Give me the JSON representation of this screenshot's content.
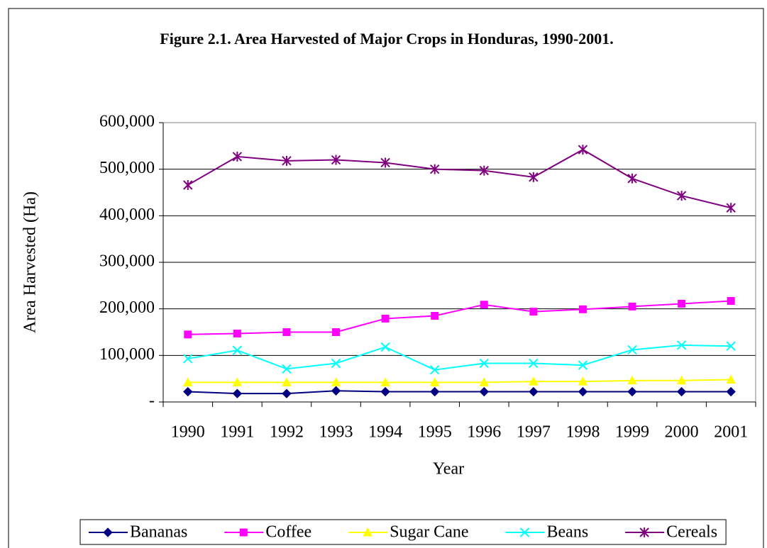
{
  "chart_data": {
    "type": "line",
    "title": "Figure 2.1. Area Harvested of Major Crops in Honduras, 1990-2001.",
    "x_label": "Year",
    "y_label": "Area Harvested (Ha)",
    "categories": [
      "1990",
      "1991",
      "1992",
      "1993",
      "1994",
      "1995",
      "1996",
      "1997",
      "1998",
      "1999",
      "2000",
      "2001"
    ],
    "series": [
      {
        "name": "Bananas",
        "color": "#000080",
        "marker": "diamond",
        "values": [
          22000,
          18000,
          18000,
          24000,
          22000,
          22000,
          22000,
          22000,
          22000,
          22000,
          22000,
          22000
        ]
      },
      {
        "name": "Coffee",
        "color": "#ff00ff",
        "marker": "square",
        "values": [
          145000,
          147000,
          150000,
          150000,
          179000,
          185000,
          209000,
          194000,
          199000,
          205000,
          211000,
          217000
        ]
      },
      {
        "name": "Sugar Cane",
        "color": "#ffff00",
        "marker": "triangle",
        "values": [
          42000,
          42000,
          42000,
          42000,
          42000,
          42000,
          42000,
          44000,
          44000,
          46000,
          46000,
          48000
        ]
      },
      {
        "name": "Beans",
        "color": "#00ffff",
        "marker": "x",
        "values": [
          93000,
          111000,
          71000,
          83000,
          118000,
          69000,
          83000,
          83000,
          79000,
          112000,
          122000,
          120000
        ]
      },
      {
        "name": "Cereals",
        "color": "#800080",
        "marker": "asterisk",
        "values": [
          466000,
          527000,
          518000,
          520000,
          514000,
          500000,
          497000,
          483000,
          542000,
          480000,
          443000,
          417000
        ]
      }
    ],
    "ylim": [
      0,
      600000
    ],
    "yticks": [
      {
        "value": 0,
        "label": "-"
      },
      {
        "value": 100000,
        "label": "100,000"
      },
      {
        "value": 200000,
        "label": "200,000"
      },
      {
        "value": 300000,
        "label": "300,000"
      },
      {
        "value": 400000,
        "label": "400,000"
      },
      {
        "value": 500000,
        "label": "500,000"
      },
      {
        "value": 600000,
        "label": "600,000"
      }
    ],
    "grid": true,
    "legend": "bottom"
  }
}
